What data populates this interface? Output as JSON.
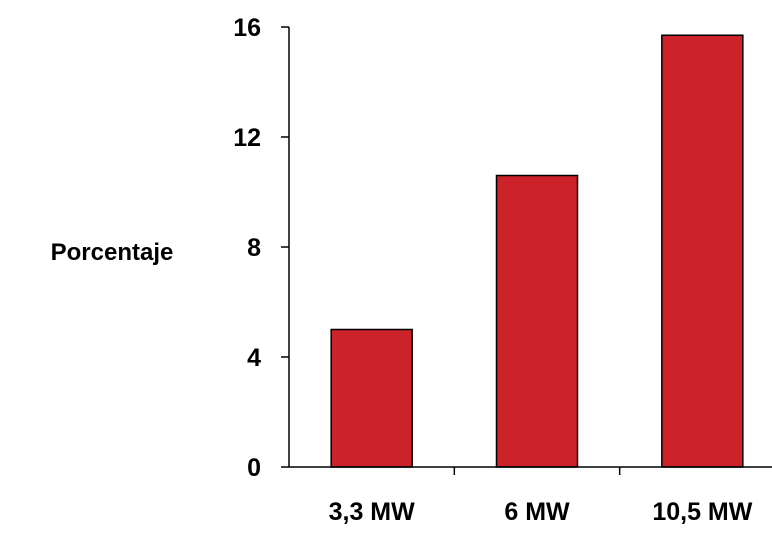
{
  "chart_data": {
    "type": "bar",
    "title": "",
    "xlabel": "",
    "ylabel": "Porcentaje",
    "categories": [
      "3,3 MW",
      "6 MW",
      "10,5 MW"
    ],
    "values": [
      5.0,
      10.6,
      15.7
    ],
    "ylim": [
      0,
      16
    ],
    "yticks": [
      0,
      4,
      8,
      12,
      16
    ],
    "grid": false,
    "legend": "none",
    "bar_color": "#cc2229",
    "bar_edge_color": "#000000"
  }
}
